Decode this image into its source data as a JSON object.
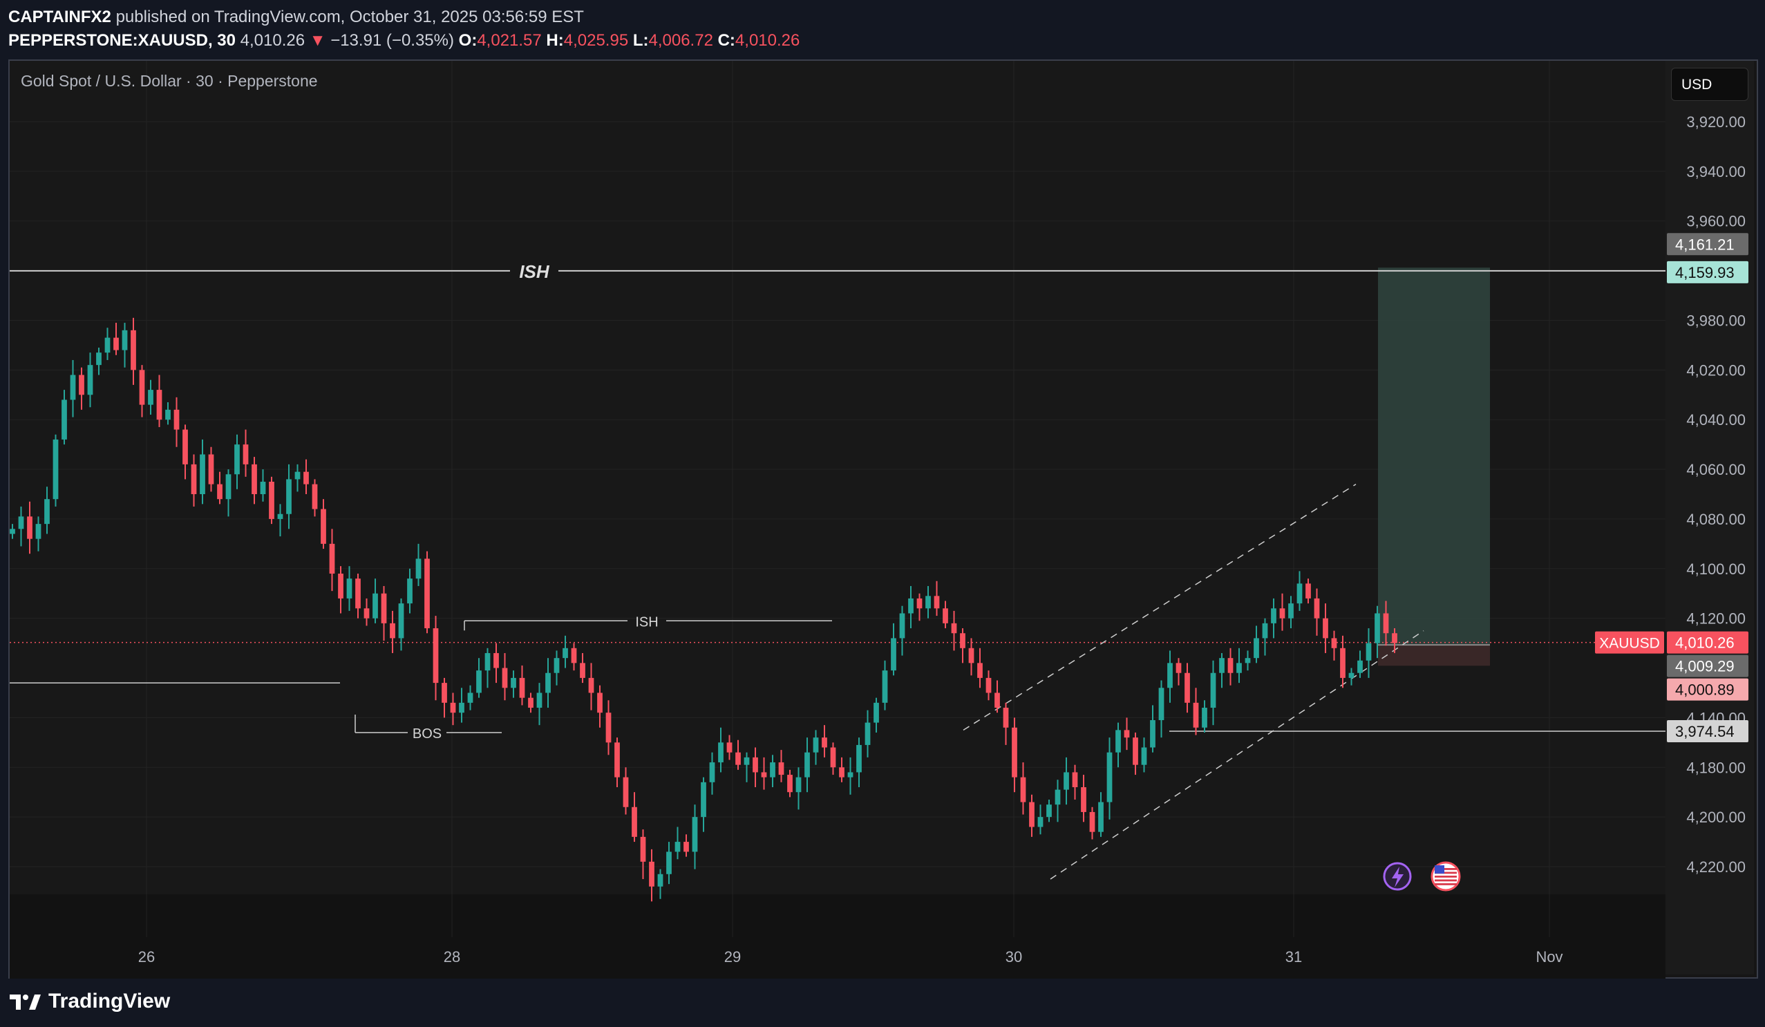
{
  "header": {
    "publisher": "CAPTAINFX2",
    "published_text": "published on TradingView.com, October 31, 2025 03:56:59 EST",
    "symbol": "PEPPERSTONE:XAUUSD, 30",
    "last": "4,010.26",
    "change": "−13.91 (−0.35%)",
    "o_label": "O:",
    "o": "4,021.57",
    "h_label": "H:",
    "h": "4,025.95",
    "l_label": "L:",
    "l": "4,006.72",
    "c_label": "C:",
    "c": "4,010.26"
  },
  "chart": {
    "title": "Gold Spot / U.S. Dollar · 30 · Pepperstone",
    "currency_button": "USD",
    "annotations": {
      "ish_major": "ISH",
      "ish_minor": "ISH",
      "bos": "BOS"
    }
  },
  "price_scale": {
    "ticks": [
      "4,220.00",
      "4,200.00",
      "4,180.00",
      "4,140.00",
      "4,120.00",
      "4,100.00",
      "4,080.00",
      "4,060.00",
      "4,040.00",
      "4,020.00",
      "3,980.00",
      "3,960.00",
      "3,940.00",
      "3,920.00"
    ],
    "labels": {
      "tp_top": "4,161.21",
      "ish_level": "4,159.93",
      "symbol_tag": "XAUUSD",
      "current": "4,010.26",
      "entry": "4,009.29",
      "stop": "4,000.89",
      "support": "3,974.54"
    }
  },
  "time_axis": [
    "26",
    "28",
    "29",
    "30",
    "31",
    "Nov"
  ],
  "colors": {
    "up": "#26a69a",
    "down": "#f7525f",
    "background": "#181818",
    "target_zone": "#2f433d",
    "stop_zone": "#3b2828"
  },
  "footer": {
    "brand": "TradingView"
  },
  "chart_data": {
    "type": "candlestick",
    "title": "Gold Spot / U.S. Dollar · 30 · Pepperstone",
    "x_ticks": [
      "26",
      "28",
      "29",
      "30",
      "31",
      "Nov"
    ],
    "y_ticks": [
      3920,
      3940,
      3960,
      3980,
      4020,
      4040,
      4060,
      4080,
      4100,
      4120,
      4140,
      4180,
      4200,
      4220
    ],
    "ylim": [
      3908,
      4238
    ],
    "closes": [
      4056,
      4061,
      4052,
      4058,
      4068,
      4092,
      4108,
      4118,
      4110,
      4122,
      4127,
      4133,
      4128,
      4136,
      4120,
      4106,
      4112,
      4100,
      4104,
      4096,
      4082,
      4070,
      4086,
      4074,
      4068,
      4078,
      4090,
      4082,
      4070,
      4075,
      4060,
      4062,
      4076,
      4079,
      4074,
      4064,
      4050,
      4038,
      4028,
      4036,
      4024,
      4020,
      4030,
      4018,
      4012,
      4026,
      4036,
      4044,
      4016,
      3994,
      3986,
      3982,
      3986,
      3990,
      3999,
      4006,
      4000,
      3992,
      3996,
      3988,
      3984,
      3990,
      3998,
      4004,
      4008,
      4002,
      3996,
      3990,
      3982,
      3970,
      3956,
      3944,
      3932,
      3922,
      3912,
      3917,
      3926,
      3930,
      3926,
      3940,
      3954,
      3962,
      3970,
      3966,
      3961,
      3964,
      3958,
      3956,
      3962,
      3957,
      3950,
      3956,
      3966,
      3972,
      3968,
      3960,
      3956,
      3958,
      3969,
      3978,
      3986,
      3999,
      4012,
      4022,
      4028,
      4024,
      4029,
      4024,
      4018,
      4014,
      4008,
      4002,
      3996,
      3990,
      3984,
      3976,
      3956,
      3946,
      3936,
      3940,
      3945,
      3951,
      3958,
      3952,
      3942,
      3934,
      3946,
      3966,
      3975,
      3972,
      3961,
      3968,
      3979,
      3992,
      4002,
      3998,
      3986,
      3976,
      3984,
      3998,
      4004,
      3998,
      4002,
      4004,
      4012,
      4018,
      4024,
      4020,
      4026,
      4034,
      4028,
      4020,
      4012,
      4008,
      3996,
      3998,
      4003,
      4010,
      4022,
      4014,
      4010
    ],
    "levels": {
      "ish_major": 4159.93,
      "ish_minor": 4019,
      "bos": 3974,
      "support": 3974.54,
      "current": 4010.26,
      "entry": 4009.29,
      "stop": 4000.89,
      "target": 4161.21
    }
  }
}
